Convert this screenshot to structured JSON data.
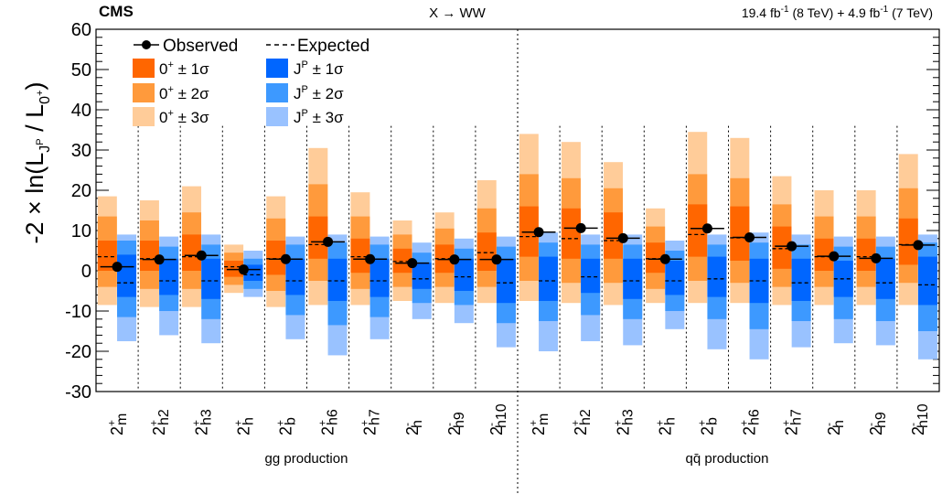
{
  "header": {
    "experiment": "CMS",
    "process": "X → WW",
    "lumi_8tev": "19.4 fb",
    "lumi_8tev_exp": "-1",
    "lumi_8tev_energy": " (8 TeV) + 4.9 fb",
    "lumi_7tev_exp": "-1",
    "lumi_7tev_energy": " (7 TeV)"
  },
  "axis": {
    "ylabel": "-2 × ln(L",
    "ylabel_sub_jp": "J",
    "ylabel_sub_p": "P",
    "ylabel_mid": " / L",
    "ylabel_sub_0": "0",
    "ylabel_sub_plus": "+",
    "ylabel_end": ")"
  },
  "legend": {
    "observed": "Observed",
    "expected": "Expected",
    "sm_1": "0",
    "sm_1_sup": "+",
    "sm_1_rest": " ± 1σ",
    "sm_2_rest": " ± 2σ",
    "sm_3_rest": " ± 3σ",
    "alt_j": "J",
    "alt_sup": "P",
    "alt_1_rest": " ± 1σ",
    "alt_2_rest": " ± 2σ",
    "alt_3_rest": " ± 3σ"
  },
  "groups": {
    "gg": "gg production",
    "qq": "qq̄ production"
  },
  "colors": {
    "sm1": "#ff6600",
    "sm2": "#ff9a3c",
    "sm3": "#ffcc99",
    "alt1": "#0066ff",
    "alt2": "#3d99ff",
    "alt3": "#99c2ff"
  },
  "chart_data": {
    "type": "bar",
    "ylim": [
      -30,
      60
    ],
    "yticks": [
      -30,
      -20,
      -10,
      0,
      10,
      20,
      30,
      40,
      50,
      60
    ],
    "categories": [
      {
        "base": "2",
        "sign": "+",
        "sub": "m",
        "group": "gg"
      },
      {
        "base": "2",
        "sign": "+",
        "sub": "h2",
        "group": "gg"
      },
      {
        "base": "2",
        "sign": "+",
        "sub": "h3",
        "group": "gg"
      },
      {
        "base": "2",
        "sign": "+",
        "sub": "h",
        "group": "gg"
      },
      {
        "base": "2",
        "sign": "+",
        "sub": "b",
        "group": "gg"
      },
      {
        "base": "2",
        "sign": "+",
        "sub": "h6",
        "group": "gg"
      },
      {
        "base": "2",
        "sign": "+",
        "sub": "h7",
        "group": "gg"
      },
      {
        "base": "2",
        "sign": "-",
        "sub": "h",
        "group": "gg"
      },
      {
        "base": "2",
        "sign": "-",
        "sub": "h9",
        "group": "gg"
      },
      {
        "base": "2",
        "sign": "-",
        "sub": "h10",
        "group": "gg"
      },
      {
        "base": "2",
        "sign": "+",
        "sub": "m",
        "group": "qq"
      },
      {
        "base": "2",
        "sign": "+",
        "sub": "h2",
        "group": "qq"
      },
      {
        "base": "2",
        "sign": "+",
        "sub": "h3",
        "group": "qq"
      },
      {
        "base": "2",
        "sign": "+",
        "sub": "h",
        "group": "qq"
      },
      {
        "base": "2",
        "sign": "+",
        "sub": "b",
        "group": "qq"
      },
      {
        "base": "2",
        "sign": "+",
        "sub": "h6",
        "group": "qq"
      },
      {
        "base": "2",
        "sign": "+",
        "sub": "h7",
        "group": "qq"
      },
      {
        "base": "2",
        "sign": "-",
        "sub": "h",
        "group": "qq"
      },
      {
        "base": "2",
        "sign": "-",
        "sub": "h9",
        "group": "qq"
      },
      {
        "base": "2",
        "sign": "-",
        "sub": "h10",
        "group": "qq"
      }
    ],
    "observed": [
      1.0,
      2.8,
      3.8,
      0.3,
      2.9,
      7.2,
      2.9,
      1.9,
      2.8,
      2.8,
      9.6,
      10.6,
      8.1,
      2.9,
      10.5,
      8.3,
      6.1,
      3.6,
      3.1,
      6.4
    ],
    "sm_expected": [
      3.5,
      3.0,
      3.5,
      1.0,
      3.0,
      6.5,
      3.5,
      2.3,
      3.0,
      4.5,
      8.5,
      8.0,
      7.5,
      3.0,
      9.0,
      8.2,
      5.5,
      3.5,
      3.5,
      6.5
    ],
    "sm_bands": [
      {
        "s1": [
          0.0,
          7.5
        ],
        "s2": [
          -4.0,
          13.5
        ],
        "s3": [
          -8.5,
          18.5
        ]
      },
      {
        "s1": [
          0.0,
          7.5
        ],
        "s2": [
          -4.5,
          12.5
        ],
        "s3": [
          -9.0,
          17.5
        ]
      },
      {
        "s1": [
          0.0,
          9.0
        ],
        "s2": [
          -4.5,
          14.5
        ],
        "s3": [
          -9.0,
          21.0
        ]
      },
      {
        "s1": [
          -1.5,
          2.5
        ],
        "s2": [
          -3.5,
          4.5
        ],
        "s3": [
          -5.5,
          6.5
        ]
      },
      {
        "s1": [
          -1.0,
          7.5
        ],
        "s2": [
          -5.0,
          13.0
        ],
        "s3": [
          -9.0,
          18.5
        ]
      },
      {
        "s1": [
          3.0,
          13.5
        ],
        "s2": [
          -2.5,
          21.5
        ],
        "s3": [
          -8.5,
          30.5
        ]
      },
      {
        "s1": [
          -0.5,
          8.0
        ],
        "s2": [
          -4.5,
          13.5
        ],
        "s3": [
          -8.5,
          19.5
        ]
      },
      {
        "s1": [
          -0.5,
          5.5
        ],
        "s2": [
          -4.0,
          9.0
        ],
        "s3": [
          -7.5,
          12.5
        ]
      },
      {
        "s1": [
          -0.5,
          6.5
        ],
        "s2": [
          -4.0,
          10.5
        ],
        "s3": [
          -8.0,
          14.5
        ]
      },
      {
        "s1": [
          0.0,
          9.5
        ],
        "s2": [
          -4.0,
          15.5
        ],
        "s3": [
          -8.0,
          22.5
        ]
      },
      {
        "s1": [
          3.5,
          16.0
        ],
        "s2": [
          -2.5,
          24.0
        ],
        "s3": [
          -7.5,
          34.0
        ]
      },
      {
        "s1": [
          3.0,
          15.5
        ],
        "s2": [
          -3.0,
          23.0
        ],
        "s3": [
          -8.0,
          32.0
        ]
      },
      {
        "s1": [
          3.0,
          14.5
        ],
        "s2": [
          -3.0,
          20.5
        ],
        "s3": [
          -8.5,
          27.0
        ]
      },
      {
        "s1": [
          -0.5,
          7.0
        ],
        "s2": [
          -4.5,
          11.0
        ],
        "s3": [
          -8.0,
          15.5
        ]
      },
      {
        "s1": [
          3.5,
          16.5
        ],
        "s2": [
          -2.5,
          24.0
        ],
        "s3": [
          -8.0,
          34.5
        ]
      },
      {
        "s1": [
          2.5,
          16.0
        ],
        "s2": [
          -3.0,
          23.0
        ],
        "s3": [
          -8.0,
          33.0
        ]
      },
      {
        "s1": [
          0.5,
          11.0
        ],
        "s2": [
          -4.0,
          16.5
        ],
        "s3": [
          -8.5,
          23.5
        ]
      },
      {
        "s1": [
          0.0,
          8.0
        ],
        "s2": [
          -4.0,
          13.5
        ],
        "s3": [
          -8.5,
          20.0
        ]
      },
      {
        "s1": [
          0.0,
          8.0
        ],
        "s2": [
          -4.0,
          13.5
        ],
        "s3": [
          -8.5,
          20.0
        ]
      },
      {
        "s1": [
          1.5,
          13.0
        ],
        "s2": [
          -3.0,
          20.5
        ],
        "s3": [
          -8.5,
          29.0
        ]
      }
    ],
    "alt_expected": [
      -3.0,
      -2.5,
      -2.5,
      -1.0,
      -2.5,
      -2.5,
      -2.5,
      -2.0,
      -1.5,
      -3.0,
      -2.5,
      -1.5,
      -2.5,
      -2.5,
      -2.0,
      -2.5,
      -3.0,
      -2.0,
      -3.0,
      -3.5
    ],
    "alt_bands": [
      {
        "s1": [
          -6.5,
          4.0
        ],
        "s2": [
          -11.5,
          7.5
        ],
        "s3": [
          -17.5,
          9.0
        ]
      },
      {
        "s1": [
          -6.0,
          3.0
        ],
        "s2": [
          -10.0,
          6.0
        ],
        "s3": [
          -16.0,
          8.5
        ]
      },
      {
        "s1": [
          -7.0,
          3.0
        ],
        "s2": [
          -12.0,
          6.5
        ],
        "s3": [
          -18.0,
          9.0
        ]
      },
      {
        "s1": [
          -2.5,
          1.5
        ],
        "s2": [
          -4.5,
          3.0
        ],
        "s3": [
          -6.5,
          5.0
        ]
      },
      {
        "s1": [
          -6.0,
          3.0
        ],
        "s2": [
          -11.0,
          6.5
        ],
        "s3": [
          -17.0,
          8.5
        ]
      },
      {
        "s1": [
          -7.5,
          3.0
        ],
        "s2": [
          -13.5,
          7.0
        ],
        "s3": [
          -21.0,
          9.0
        ]
      },
      {
        "s1": [
          -6.5,
          3.0
        ],
        "s2": [
          -11.5,
          6.5
        ],
        "s3": [
          -17.0,
          8.5
        ]
      },
      {
        "s1": [
          -4.5,
          2.0
        ],
        "s2": [
          -8.0,
          4.5
        ],
        "s3": [
          -12.0,
          7.0
        ]
      },
      {
        "s1": [
          -5.0,
          3.0
        ],
        "s2": [
          -8.5,
          5.5
        ],
        "s3": [
          -13.0,
          8.0
        ]
      },
      {
        "s1": [
          -8.0,
          3.0
        ],
        "s2": [
          -13.0,
          6.0
        ],
        "s3": [
          -19.0,
          8.5
        ]
      },
      {
        "s1": [
          -7.5,
          3.5
        ],
        "s2": [
          -12.5,
          7.0
        ],
        "s3": [
          -20.0,
          9.5
        ]
      },
      {
        "s1": [
          -5.5,
          3.0
        ],
        "s2": [
          -11.0,
          6.5
        ],
        "s3": [
          -17.5,
          9.0
        ]
      },
      {
        "s1": [
          -7.0,
          3.0
        ],
        "s2": [
          -12.0,
          6.5
        ],
        "s3": [
          -18.5,
          9.0
        ]
      },
      {
        "s1": [
          -6.0,
          2.5
        ],
        "s2": [
          -10.0,
          5.0
        ],
        "s3": [
          -14.5,
          7.5
        ]
      },
      {
        "s1": [
          -6.5,
          3.5
        ],
        "s2": [
          -12.0,
          6.5
        ],
        "s3": [
          -19.5,
          9.0
        ]
      },
      {
        "s1": [
          -8.0,
          3.0
        ],
        "s2": [
          -14.5,
          7.0
        ],
        "s3": [
          -22.0,
          9.5
        ]
      },
      {
        "s1": [
          -7.5,
          3.0
        ],
        "s2": [
          -12.5,
          6.5
        ],
        "s3": [
          -19.0,
          9.0
        ]
      },
      {
        "s1": [
          -6.5,
          2.5
        ],
        "s2": [
          -12.0,
          6.0
        ],
        "s3": [
          -18.0,
          8.5
        ]
      },
      {
        "s1": [
          -7.0,
          3.0
        ],
        "s2": [
          -12.5,
          6.0
        ],
        "s3": [
          -18.5,
          8.5
        ]
      },
      {
        "s1": [
          -8.5,
          3.5
        ],
        "s2": [
          -15.0,
          7.0
        ],
        "s3": [
          -22.0,
          9.0
        ]
      }
    ]
  }
}
